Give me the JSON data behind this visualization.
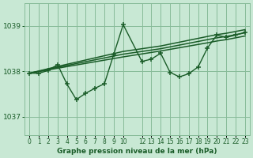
{
  "bg_color": "#c8e8d4",
  "grid_color": "#88bb99",
  "line_color": "#1a5c28",
  "title": "Graphe pression niveau de la mer (hPa)",
  "ylim": [
    1036.6,
    1039.5
  ],
  "yticks": [
    1037,
    1038,
    1039
  ],
  "xlim": [
    -0.5,
    23.5
  ],
  "xticks": [
    0,
    1,
    2,
    3,
    4,
    5,
    6,
    7,
    8,
    9,
    10,
    12,
    13,
    14,
    15,
    16,
    17,
    18,
    19,
    20,
    21,
    22,
    23
  ],
  "main_x": [
    0,
    1,
    2,
    3,
    4,
    5,
    6,
    7,
    8,
    9,
    10,
    12,
    13,
    14,
    15,
    16,
    17,
    18,
    19,
    20,
    21,
    22,
    23
  ],
  "main_y": [
    1037.96,
    1037.96,
    1038.02,
    1038.15,
    1037.72,
    1037.38,
    1037.52,
    1037.63,
    1037.73,
    1038.38,
    1039.03,
    1038.22,
    1038.27,
    1038.4,
    1037.98,
    1037.88,
    1037.95,
    1038.1,
    1038.52,
    1038.8,
    1038.75,
    1038.8,
    1038.86
  ],
  "trend1_x": [
    0,
    3,
    10,
    14,
    19,
    20,
    21,
    22,
    23
  ],
  "trend1_y": [
    1037.96,
    1038.07,
    1038.32,
    1038.45,
    1038.63,
    1038.67,
    1038.7,
    1038.74,
    1038.78
  ],
  "trend2_x": [
    0,
    3,
    10,
    14,
    19,
    20,
    21,
    22,
    23
  ],
  "trend2_y": [
    1037.96,
    1038.09,
    1038.38,
    1038.5,
    1038.7,
    1038.74,
    1038.77,
    1038.81,
    1038.85
  ],
  "trend3_x": [
    0,
    3,
    10,
    14,
    19,
    20,
    21,
    22,
    23
  ],
  "trend3_y": [
    1037.96,
    1038.11,
    1038.44,
    1038.56,
    1038.77,
    1038.81,
    1038.84,
    1038.88,
    1038.92
  ]
}
